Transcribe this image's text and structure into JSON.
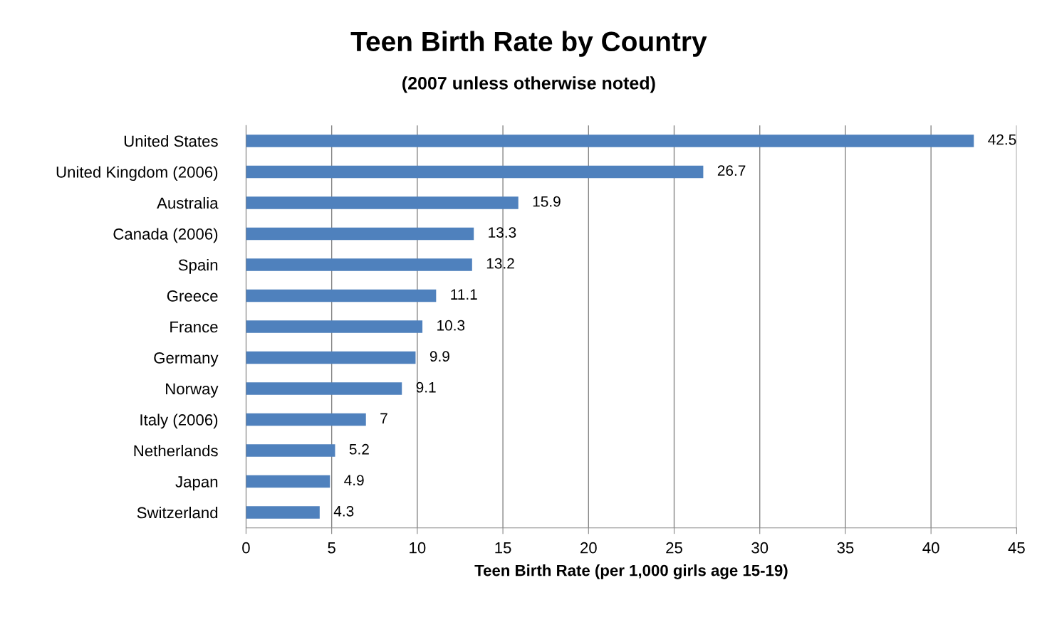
{
  "chart_data": {
    "type": "bar",
    "orientation": "horizontal",
    "title": "Teen Birth Rate by Country",
    "subtitle": "(2007 unless otherwise noted)",
    "xlabel": "Teen Birth Rate (per 1,000 girls age 15-19)",
    "categories": [
      "United States",
      "United Kingdom (2006)",
      "Australia",
      "Canada (2006)",
      "Spain",
      "Greece",
      "France",
      "Germany",
      "Norway",
      "Italy (2006)",
      "Netherlands",
      "Japan",
      "Switzerland"
    ],
    "values": [
      42.5,
      26.7,
      15.9,
      13.3,
      13.2,
      11.1,
      10.3,
      9.9,
      9.1,
      7,
      5.2,
      4.9,
      4.3
    ],
    "color": "#4f81bd",
    "xlim": [
      0,
      45
    ],
    "xticks": [
      0,
      5,
      10,
      15,
      20,
      25,
      30,
      35,
      40,
      45
    ],
    "grid": "x",
    "data_labels": true,
    "legend": false
  }
}
